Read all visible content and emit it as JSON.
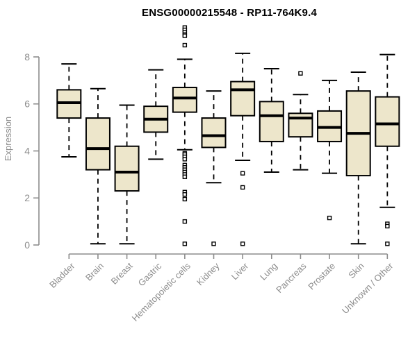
{
  "chart_data": {
    "type": "boxplot",
    "title": "ENSG00000215548 - RP11-764K9.4",
    "ylabel": "Expression",
    "xlabel": "",
    "yticks": [
      0,
      2,
      4,
      6,
      8
    ],
    "ylim": [
      0,
      9.4
    ],
    "grid": false,
    "legend": "none",
    "categories": [
      "Bladder",
      "Brain",
      "Breast",
      "Gastric",
      "Hematopoietic cells",
      "Kidney",
      "Liver",
      "Lung",
      "Pancreas",
      "Prostate",
      "Skin",
      "Unknown / Other"
    ],
    "series": [
      {
        "name": "Bladder",
        "low": 3.75,
        "q1": 5.4,
        "median": 6.05,
        "q3": 6.6,
        "high": 7.7,
        "outliers": []
      },
      {
        "name": "Brain",
        "low": 0.05,
        "q1": 3.2,
        "median": 4.1,
        "q3": 5.4,
        "high": 6.65,
        "outliers": []
      },
      {
        "name": "Breast",
        "low": 0.05,
        "q1": 2.3,
        "median": 3.1,
        "q3": 4.2,
        "high": 5.95,
        "outliers": []
      },
      {
        "name": "Gastric",
        "low": 3.65,
        "q1": 4.8,
        "median": 5.35,
        "q3": 5.9,
        "high": 7.45,
        "outliers": []
      },
      {
        "name": "Hematopoietic cells",
        "low": 4.05,
        "q1": 5.65,
        "median": 6.25,
        "q3": 6.7,
        "high": 7.9,
        "outliers": [
          9.25,
          9.15,
          9.05,
          8.95,
          8.9,
          8.5,
          3.9,
          3.85,
          3.75,
          3.65,
          3.4,
          3.3,
          3.2,
          3.1,
          3.0,
          2.9,
          2.25,
          2.15,
          1.95,
          1.0,
          0.05
        ]
      },
      {
        "name": "Kidney",
        "low": 2.65,
        "q1": 4.15,
        "median": 4.65,
        "q3": 5.4,
        "high": 6.55,
        "outliers": [
          0.05
        ]
      },
      {
        "name": "Liver",
        "low": 3.6,
        "q1": 5.5,
        "median": 6.6,
        "q3": 6.95,
        "high": 8.15,
        "outliers": [
          3.05,
          2.45,
          0.05
        ]
      },
      {
        "name": "Lung",
        "low": 3.1,
        "q1": 4.4,
        "median": 5.5,
        "q3": 6.1,
        "high": 7.5,
        "outliers": []
      },
      {
        "name": "Pancreas",
        "low": 3.2,
        "q1": 4.6,
        "median": 5.4,
        "q3": 5.6,
        "high": 6.4,
        "outliers": [
          7.3
        ]
      },
      {
        "name": "Prostate",
        "low": 3.05,
        "q1": 4.4,
        "median": 5.0,
        "q3": 5.7,
        "high": 7.0,
        "outliers": [
          1.15
        ]
      },
      {
        "name": "Skin",
        "low": 0.05,
        "q1": 2.95,
        "median": 4.75,
        "q3": 6.55,
        "high": 7.35,
        "outliers": []
      },
      {
        "name": "Unknown / Other",
        "low": 1.6,
        "q1": 4.2,
        "median": 5.15,
        "q3": 6.3,
        "high": 8.1,
        "outliers": [
          0.9,
          0.8,
          0.05
        ]
      }
    ],
    "colors": {
      "box_fill": "#EDE6CB",
      "box_border": "#000000",
      "median": "#000000",
      "whisker": "#000000",
      "outlier_stroke": "#000000",
      "axis": "#8C8C8C",
      "tick_label": "#8C8C8C",
      "title": "#000000"
    }
  }
}
